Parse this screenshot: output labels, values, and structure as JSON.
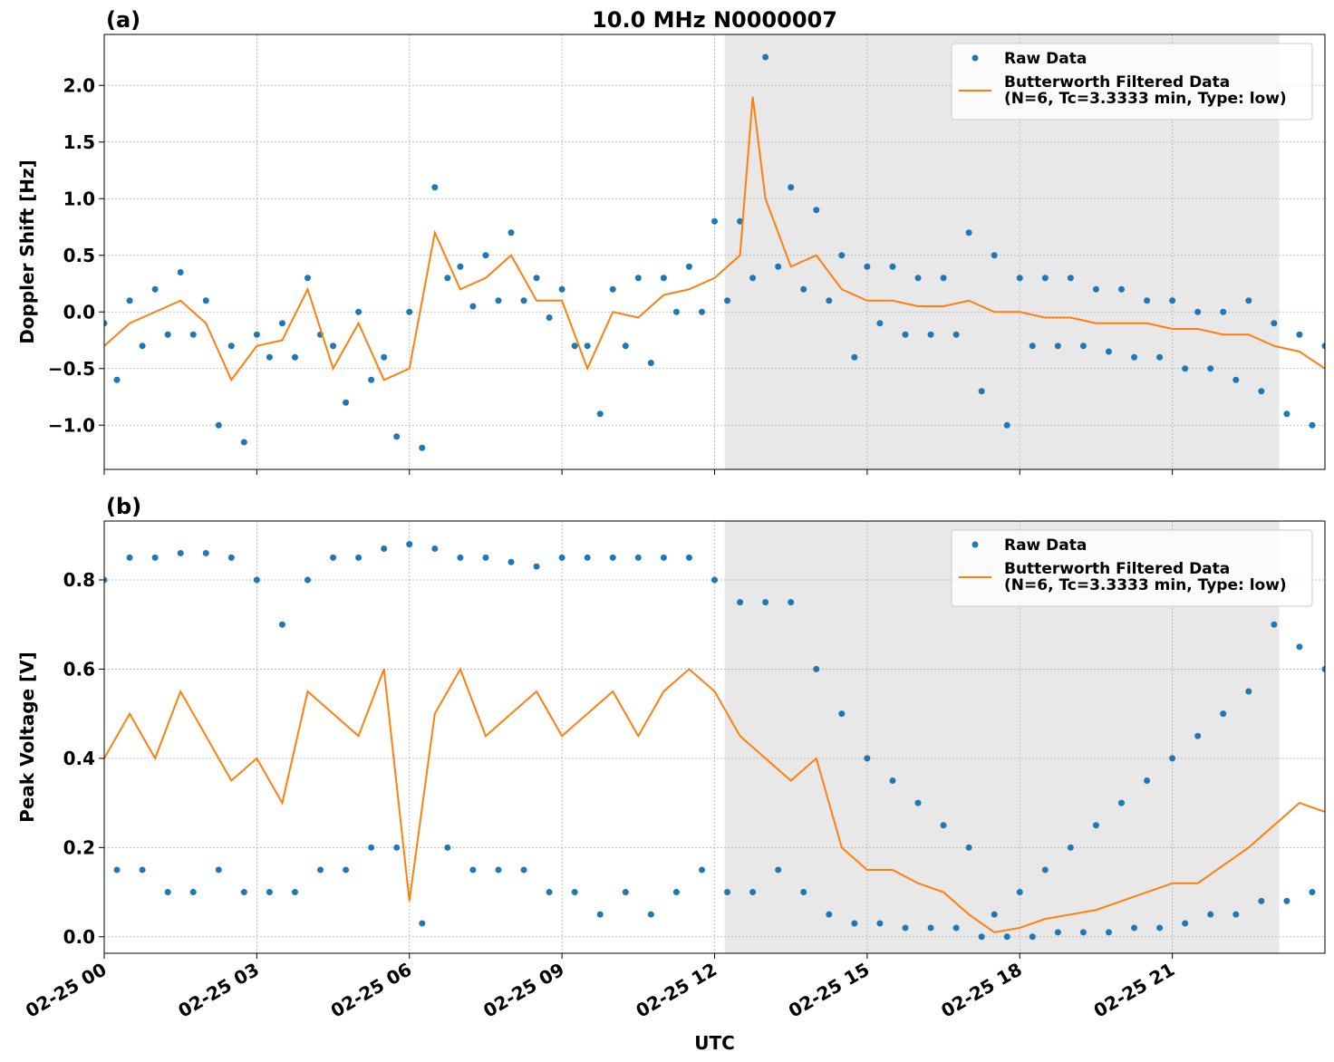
{
  "chart_data": [
    {
      "type": "line",
      "title": "10.0 MHz N0000007",
      "panel_label": "(a)",
      "ylabel": "Doppler Shift [Hz]",
      "xlim": [
        0,
        24
      ],
      "ylim": [
        -1.39,
        2.45
      ],
      "xticks": [
        {
          "value": 0,
          "label": "02-25 00"
        },
        {
          "value": 3,
          "label": "02-25 03"
        },
        {
          "value": 6,
          "label": "02-25 06"
        },
        {
          "value": 9,
          "label": "02-25 09"
        },
        {
          "value": 12,
          "label": "02-25 12"
        },
        {
          "value": 15,
          "label": "02-25 15"
        },
        {
          "value": 18,
          "label": "02-25 18"
        },
        {
          "value": 21,
          "label": "02-25 21"
        }
      ],
      "yticks": [
        {
          "value": -1.0,
          "label": "−1.0"
        },
        {
          "value": -0.5,
          "label": "−0.5"
        },
        {
          "value": 0.0,
          "label": "0.0"
        },
        {
          "value": 0.5,
          "label": "0.5"
        },
        {
          "value": 1.0,
          "label": "1.0"
        },
        {
          "value": 1.5,
          "label": "1.5"
        },
        {
          "value": 2.0,
          "label": "2.0"
        }
      ],
      "grid": true,
      "legend": "upper right",
      "shaded_span": [
        12.2,
        23.1
      ],
      "shade_color": "#e8e8e8",
      "series": [
        {
          "name": "Raw Data",
          "type": "scatter",
          "color": "#1f77b4",
          "x": [
            0,
            0.25,
            0.5,
            0.75,
            1,
            1.25,
            1.5,
            1.75,
            2,
            2.25,
            2.5,
            2.75,
            3,
            3.25,
            3.5,
            3.75,
            4,
            4.25,
            4.5,
            4.75,
            5,
            5.25,
            5.5,
            5.75,
            6,
            6.25,
            6.5,
            6.75,
            7,
            7.25,
            7.5,
            7.75,
            8,
            8.25,
            8.5,
            8.75,
            9,
            9.25,
            9.5,
            9.75,
            10,
            10.25,
            10.5,
            10.75,
            11,
            11.25,
            11.5,
            11.75,
            12,
            12.25,
            12.5,
            12.75,
            13,
            13.25,
            13.5,
            13.75,
            14,
            14.25,
            14.5,
            14.75,
            15,
            15.25,
            15.5,
            15.75,
            16,
            16.25,
            16.5,
            16.75,
            17,
            17.25,
            17.5,
            17.75,
            18,
            18.25,
            18.5,
            18.75,
            19,
            19.25,
            19.5,
            19.75,
            20,
            20.25,
            20.5,
            20.75,
            21,
            21.25,
            21.5,
            21.75,
            22,
            22.25,
            22.5,
            22.75,
            23,
            23.25,
            23.5,
            23.75,
            24
          ],
          "values": [
            -0.1,
            -0.6,
            0.1,
            -0.3,
            0.2,
            -0.2,
            0.35,
            -0.2,
            0.1,
            -1.0,
            -0.3,
            -1.15,
            -0.2,
            -0.4,
            -0.1,
            -0.4,
            0.3,
            -0.2,
            -0.3,
            -0.8,
            0.0,
            -0.6,
            -0.4,
            -1.1,
            0.0,
            -1.2,
            1.1,
            0.3,
            0.4,
            0.05,
            0.5,
            0.1,
            0.7,
            0.1,
            0.3,
            -0.05,
            0.2,
            -0.3,
            -0.3,
            -0.9,
            0.2,
            -0.3,
            0.3,
            -0.45,
            0.3,
            0.0,
            0.4,
            0.0,
            0.8,
            0.1,
            0.8,
            0.3,
            2.25,
            0.4,
            1.1,
            0.2,
            0.9,
            0.1,
            0.5,
            -0.4,
            0.4,
            -0.1,
            0.4,
            -0.2,
            0.3,
            -0.2,
            0.3,
            -0.2,
            0.7,
            -0.7,
            0.5,
            -1.0,
            0.3,
            -0.3,
            0.3,
            -0.3,
            0.3,
            -0.3,
            0.2,
            -0.35,
            0.2,
            -0.4,
            0.1,
            -0.4,
            0.1,
            -0.5,
            0.0,
            -0.5,
            0.0,
            -0.6,
            0.1,
            -0.7,
            -0.1,
            -0.9,
            -0.2,
            -1.0,
            -0.3
          ]
        },
        {
          "name": "Butterworth Filtered Data\n(N=6, Tc=3.3333 min, Type: low)",
          "type": "line",
          "color": "#ff7f0e",
          "x": [
            0,
            0.5,
            1,
            1.5,
            2,
            2.5,
            3,
            3.5,
            4,
            4.5,
            5,
            5.5,
            6,
            6.5,
            7,
            7.5,
            8,
            8.5,
            9,
            9.5,
            10,
            10.5,
            11,
            11.5,
            12,
            12.5,
            12.75,
            13,
            13.5,
            14,
            14.5,
            15,
            15.5,
            16,
            16.5,
            17,
            17.5,
            18,
            18.5,
            19,
            19.5,
            20,
            20.5,
            21,
            21.5,
            22,
            22.5,
            23,
            23.5,
            24
          ],
          "values": [
            -0.3,
            -0.1,
            0.0,
            0.1,
            -0.1,
            -0.6,
            -0.3,
            -0.25,
            0.2,
            -0.5,
            -0.1,
            -0.6,
            -0.5,
            0.7,
            0.2,
            0.3,
            0.5,
            0.1,
            0.1,
            -0.5,
            0.0,
            -0.05,
            0.15,
            0.2,
            0.3,
            0.5,
            1.9,
            1.0,
            0.4,
            0.5,
            0.2,
            0.1,
            0.1,
            0.05,
            0.05,
            0.1,
            0.0,
            0.0,
            -0.05,
            -0.05,
            -0.1,
            -0.1,
            -0.1,
            -0.15,
            -0.15,
            -0.2,
            -0.2,
            -0.3,
            -0.35,
            -0.5
          ]
        }
      ]
    },
    {
      "type": "line",
      "panel_label": "(b)",
      "ylabel": "Peak Voltage [V]",
      "xlabel": "UTC",
      "xlim": [
        0,
        24
      ],
      "ylim": [
        -0.037,
        0.932
      ],
      "xticks": [
        {
          "value": 0,
          "label": "02-25 00"
        },
        {
          "value": 3,
          "label": "02-25 03"
        },
        {
          "value": 6,
          "label": "02-25 06"
        },
        {
          "value": 9,
          "label": "02-25 09"
        },
        {
          "value": 12,
          "label": "02-25 12"
        },
        {
          "value": 15,
          "label": "02-25 15"
        },
        {
          "value": 18,
          "label": "02-25 18"
        },
        {
          "value": 21,
          "label": "02-25 21"
        }
      ],
      "yticks": [
        {
          "value": 0.0,
          "label": "0.0"
        },
        {
          "value": 0.2,
          "label": "0.2"
        },
        {
          "value": 0.4,
          "label": "0.4"
        },
        {
          "value": 0.6,
          "label": "0.6"
        },
        {
          "value": 0.8,
          "label": "0.8"
        }
      ],
      "grid": true,
      "legend": "upper right",
      "shaded_span": [
        12.2,
        23.1
      ],
      "shade_color": "#e8e8e8",
      "series": [
        {
          "name": "Raw Data",
          "type": "scatter",
          "color": "#1f77b4",
          "x": [
            0,
            0.25,
            0.5,
            0.75,
            1,
            1.25,
            1.5,
            1.75,
            2,
            2.25,
            2.5,
            2.75,
            3,
            3.25,
            3.5,
            3.75,
            4,
            4.25,
            4.5,
            4.75,
            5,
            5.25,
            5.5,
            5.75,
            6,
            6.25,
            6.5,
            6.75,
            7,
            7.25,
            7.5,
            7.75,
            8,
            8.25,
            8.5,
            8.75,
            9,
            9.25,
            9.5,
            9.75,
            10,
            10.25,
            10.5,
            10.75,
            11,
            11.25,
            11.5,
            11.75,
            12,
            12.25,
            12.5,
            12.75,
            13,
            13.25,
            13.5,
            13.75,
            14,
            14.25,
            14.5,
            14.75,
            15,
            15.25,
            15.5,
            15.75,
            16,
            16.25,
            16.5,
            16.75,
            17,
            17.25,
            17.5,
            17.75,
            18,
            18.25,
            18.5,
            18.75,
            19,
            19.25,
            19.5,
            19.75,
            20,
            20.25,
            20.5,
            20.75,
            21,
            21.25,
            21.5,
            21.75,
            22,
            22.25,
            22.5,
            22.75,
            23,
            23.25,
            23.5,
            23.75,
            24
          ],
          "values": [
            0.8,
            0.15,
            0.85,
            0.15,
            0.85,
            0.1,
            0.86,
            0.1,
            0.86,
            0.15,
            0.85,
            0.1,
            0.8,
            0.1,
            0.7,
            0.1,
            0.8,
            0.15,
            0.85,
            0.15,
            0.85,
            0.2,
            0.87,
            0.2,
            0.88,
            0.03,
            0.87,
            0.2,
            0.85,
            0.15,
            0.85,
            0.15,
            0.84,
            0.15,
            0.83,
            0.1,
            0.85,
            0.1,
            0.85,
            0.05,
            0.85,
            0.1,
            0.85,
            0.05,
            0.85,
            0.1,
            0.85,
            0.15,
            0.8,
            0.1,
            0.75,
            0.1,
            0.75,
            0.15,
            0.75,
            0.1,
            0.6,
            0.05,
            0.5,
            0.03,
            0.4,
            0.03,
            0.35,
            0.02,
            0.3,
            0.02,
            0.25,
            0.02,
            0.2,
            0.0,
            0.05,
            0.0,
            0.1,
            0.0,
            0.15,
            0.01,
            0.2,
            0.01,
            0.25,
            0.01,
            0.3,
            0.02,
            0.35,
            0.02,
            0.4,
            0.03,
            0.45,
            0.05,
            0.5,
            0.05,
            0.55,
            0.08,
            0.7,
            0.08,
            0.65,
            0.1,
            0.6
          ]
        },
        {
          "name": "Butterworth Filtered Data\n(N=6, Tc=3.3333 min, Type: low)",
          "type": "line",
          "color": "#ff7f0e",
          "x": [
            0,
            0.5,
            1,
            1.5,
            2,
            2.5,
            3,
            3.5,
            4,
            4.5,
            5,
            5.5,
            6,
            6.5,
            7,
            7.5,
            8,
            8.5,
            9,
            9.5,
            10,
            10.5,
            11,
            11.5,
            12,
            12.5,
            13,
            13.5,
            14,
            14.5,
            15,
            15.5,
            16,
            16.5,
            17,
            17.5,
            18,
            18.5,
            19,
            19.5,
            20,
            20.5,
            21,
            21.5,
            22,
            22.5,
            23,
            23.5,
            24
          ],
          "values": [
            0.4,
            0.5,
            0.4,
            0.55,
            0.45,
            0.35,
            0.4,
            0.3,
            0.55,
            0.5,
            0.45,
            0.6,
            0.08,
            0.5,
            0.6,
            0.45,
            0.5,
            0.55,
            0.45,
            0.5,
            0.55,
            0.45,
            0.55,
            0.6,
            0.55,
            0.45,
            0.4,
            0.35,
            0.4,
            0.2,
            0.15,
            0.15,
            0.12,
            0.1,
            0.05,
            0.01,
            0.02,
            0.04,
            0.05,
            0.06,
            0.08,
            0.1,
            0.12,
            0.12,
            0.16,
            0.2,
            0.25,
            0.3,
            0.28
          ]
        }
      ]
    }
  ]
}
